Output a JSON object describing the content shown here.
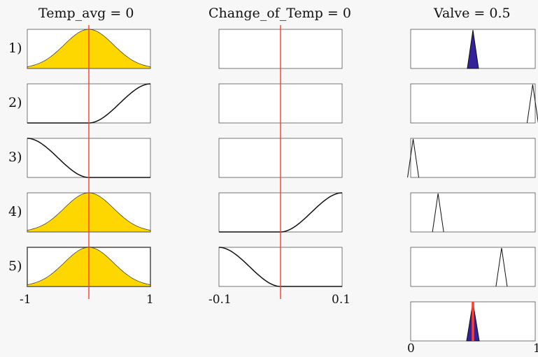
{
  "headers": {
    "input1": "Temp_avg = 0",
    "input2": "Change_of_Temp = 0",
    "output": "Valve = 0.5"
  },
  "rows": [
    "1)",
    "2)",
    "3)",
    "4)",
    "5)"
  ],
  "axis": {
    "input1": {
      "min": "-1",
      "max": "1"
    },
    "input2": {
      "min": "-0.1",
      "max": "0.1"
    },
    "output": {
      "min": "0",
      "max": "1"
    }
  },
  "colors": {
    "fill_input": "#ffd700",
    "fill_output": "#33229a",
    "indicator": "#ff3b2f",
    "line": "#111111"
  },
  "inputs": {
    "Temp_avg": {
      "range": [
        -1,
        1
      ],
      "value": 0
    },
    "Change_of_Temp": {
      "range": [
        -0.1,
        0.1
      ],
      "value": 0
    }
  },
  "output": {
    "name": "Valve",
    "range": [
      0,
      1
    ],
    "value": 0.5
  },
  "rules": [
    {
      "temp_mf": "gaussian",
      "temp_fired": true,
      "change_mf": "none",
      "valve_peak": 0.5,
      "valve_fired": true
    },
    {
      "temp_mf": "s-shaped",
      "temp_fired": false,
      "change_mf": "none",
      "valve_peak": 0.98,
      "valve_fired": false
    },
    {
      "temp_mf": "z-shaped",
      "temp_fired": false,
      "change_mf": "none",
      "valve_peak": 0.02,
      "valve_fired": false
    },
    {
      "temp_mf": "gaussian",
      "temp_fired": true,
      "change_mf": "s-shaped",
      "valve_peak": 0.22,
      "valve_fired": false
    },
    {
      "temp_mf": "gaussian",
      "temp_fired": true,
      "change_mf": "z-shaped",
      "valve_peak": 0.73,
      "valve_fired": false
    }
  ]
}
